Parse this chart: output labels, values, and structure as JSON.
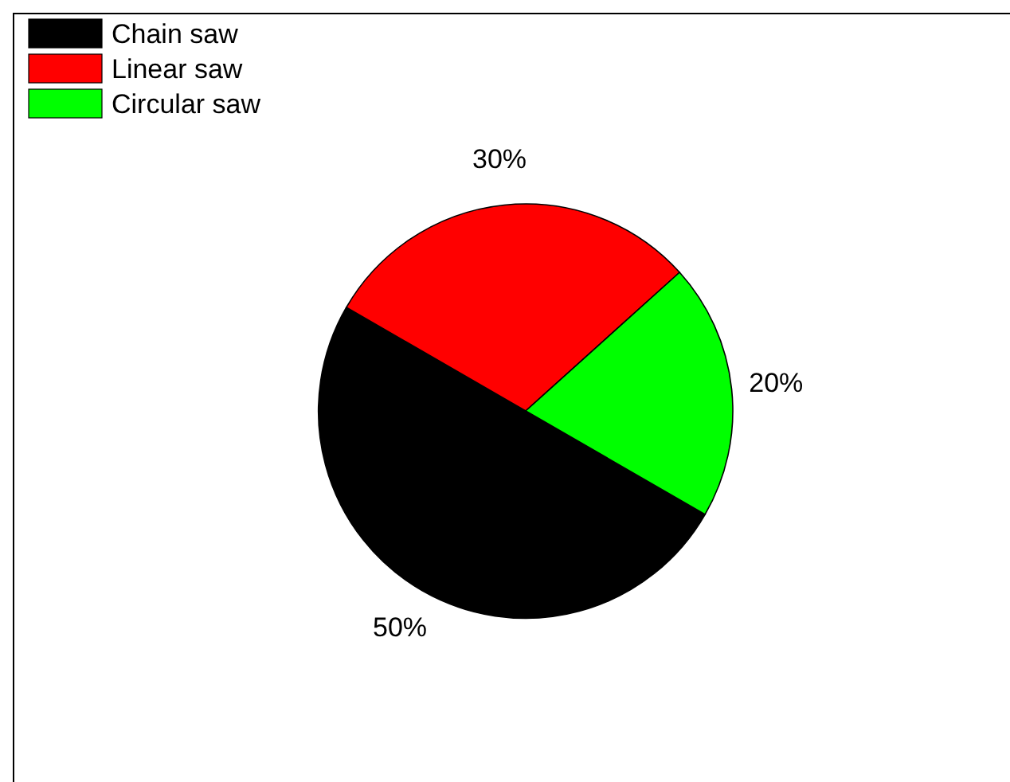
{
  "chart_data": {
    "type": "pie",
    "categories": [
      "Chain saw",
      "Linear saw",
      "Circular saw"
    ],
    "values": [
      50,
      30,
      20
    ],
    "colors": [
      "#000000",
      "#ff0000",
      "#00ff00"
    ],
    "value_labels": [
      "50%",
      "30%",
      "20%"
    ],
    "legend": "top left"
  }
}
